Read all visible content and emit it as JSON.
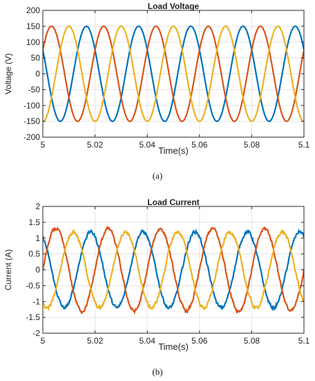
{
  "chart_data": [
    {
      "type": "line",
      "title": "Load Voltage",
      "xlabel": "Time(s)",
      "ylabel": "Voltage (V)",
      "caption": "(a)",
      "xlim": [
        5,
        5.1
      ],
      "ylim": [
        -200,
        200
      ],
      "xticks": [
        5,
        5.02,
        5.04,
        5.06,
        5.08,
        5.1
      ],
      "xtick_labels": [
        "5",
        "5.02",
        "5.04",
        "5.06",
        "5.08",
        "5.1"
      ],
      "yticks": [
        -200,
        -150,
        -100,
        -50,
        0,
        50,
        100,
        150,
        200
      ],
      "ytick_labels": [
        "-200",
        "-150",
        "-100",
        "-50",
        "0",
        "50",
        "100",
        "150",
        "200"
      ],
      "grid": true,
      "frequency_hz": 50,
      "series": [
        {
          "color": "#0072BD",
          "amplitude": 150,
          "phase_deg": 150,
          "noise": 0
        },
        {
          "color": "#D95319",
          "amplitude": 150,
          "phase_deg": 30,
          "noise": 0
        },
        {
          "color": "#EDB120",
          "amplitude": 150,
          "phase_deg": -90,
          "noise": 0
        }
      ]
    },
    {
      "type": "line",
      "title": "Load Current",
      "xlabel": "Time(s)",
      "ylabel": "Current (A)",
      "caption": "(b)",
      "xlim": [
        5,
        5.1
      ],
      "ylim": [
        -2,
        2
      ],
      "xticks": [
        5,
        5.02,
        5.04,
        5.06,
        5.08,
        5.1
      ],
      "xtick_labels": [
        "5",
        "5.02",
        "5.04",
        "5.06",
        "5.08",
        "5.1"
      ],
      "yticks": [
        -2,
        -1.5,
        -1,
        -0.5,
        0,
        0.5,
        1,
        1.5,
        2
      ],
      "ytick_labels": [
        "-2",
        "-1.5",
        "-1",
        "-0.5",
        "0",
        "0.5",
        "1",
        "1.5",
        "2"
      ],
      "grid": true,
      "frequency_hz": 50,
      "series": [
        {
          "color": "#0072BD",
          "amplitude": 1.2,
          "phase_deg": 120,
          "noise": 0.05
        },
        {
          "color": "#D95319",
          "amplitude": 1.3,
          "phase_deg": 0,
          "noise": 0.05
        },
        {
          "color": "#EDB120",
          "amplitude": 1.2,
          "phase_deg": -120,
          "noise": 0.05
        }
      ]
    }
  ]
}
